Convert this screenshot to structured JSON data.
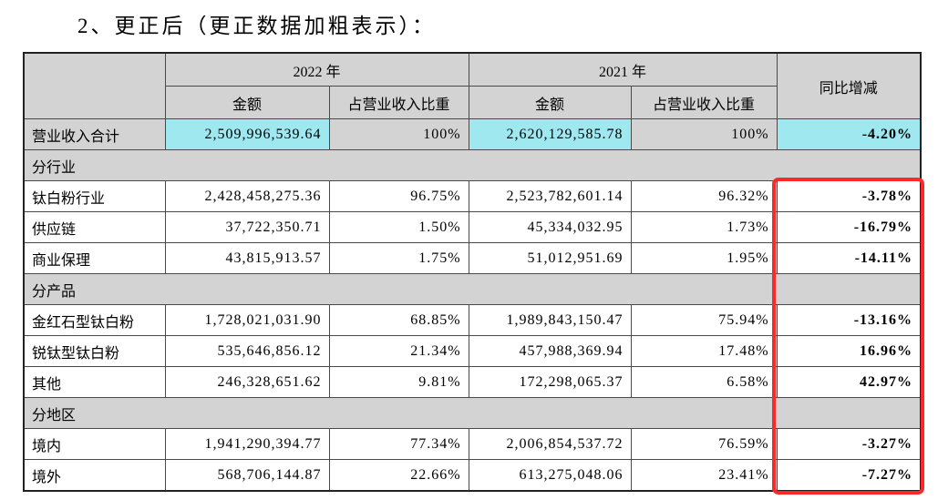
{
  "title": "2、更正后（更正数据加粗表示）：",
  "table": {
    "header": {
      "year_2022": "2022 年",
      "year_2021": "2021 年",
      "amount": "金额",
      "share": "占营业收入比重",
      "yoy": "同比增减"
    },
    "rows": [
      {
        "type": "total",
        "label": "营业收入合计",
        "amount_2022": "2,509,996,539.64",
        "share_2022": "100%",
        "amount_2021": "2,620,129,585.78",
        "share_2021": "100%",
        "yoy": "-4.20%"
      },
      {
        "type": "section",
        "label": "分行业"
      },
      {
        "type": "data",
        "label": "钛白粉行业",
        "amount_2022": "2,428,458,275.36",
        "share_2022": "96.75%",
        "amount_2021": "2,523,782,601.14",
        "share_2021": "96.32%",
        "yoy": "-3.78%"
      },
      {
        "type": "data",
        "label": "供应链",
        "amount_2022": "37,722,350.71",
        "share_2022": "1.50%",
        "amount_2021": "45,334,032.95",
        "share_2021": "1.73%",
        "yoy": "-16.79%"
      },
      {
        "type": "data",
        "label": "商业保理",
        "amount_2022": "43,815,913.57",
        "share_2022": "1.75%",
        "amount_2021": "51,012,951.69",
        "share_2021": "1.95%",
        "yoy": "-14.11%"
      },
      {
        "type": "section",
        "label": "分产品"
      },
      {
        "type": "data",
        "label": "金红石型钛白粉",
        "amount_2022": "1,728,021,031.90",
        "share_2022": "68.85%",
        "amount_2021": "1,989,843,150.47",
        "share_2021": "75.94%",
        "yoy": "-13.16%"
      },
      {
        "type": "data",
        "label": "锐钛型钛白粉",
        "amount_2022": "535,646,856.12",
        "share_2022": "21.34%",
        "amount_2021": "457,988,369.94",
        "share_2021": "17.48%",
        "yoy": "16.96%"
      },
      {
        "type": "data",
        "label": "其他",
        "amount_2022": "246,328,651.62",
        "share_2022": "9.81%",
        "amount_2021": "172,298,065.37",
        "share_2021": "6.58%",
        "yoy": "42.97%"
      },
      {
        "type": "section",
        "label": "分地区"
      },
      {
        "type": "data",
        "label": "境内",
        "amount_2022": "1,941,290,394.77",
        "share_2022": "77.34%",
        "amount_2021": "2,006,854,537.72",
        "share_2021": "76.59%",
        "yoy": "-3.27%"
      },
      {
        "type": "data",
        "label": "境外",
        "amount_2022": "568,706,144.87",
        "share_2022": "22.66%",
        "amount_2021": "613,275,048.06",
        "share_2021": "23.41%",
        "yoy": "-7.27%"
      }
    ],
    "red_box": {
      "first_row_label": "钛白粉行业",
      "column": "同比增减"
    }
  },
  "colors": {
    "highlight_cyan": "#9fe8ef",
    "header_gray": "#d3d3d3",
    "red_box": "#fa2a2a"
  }
}
